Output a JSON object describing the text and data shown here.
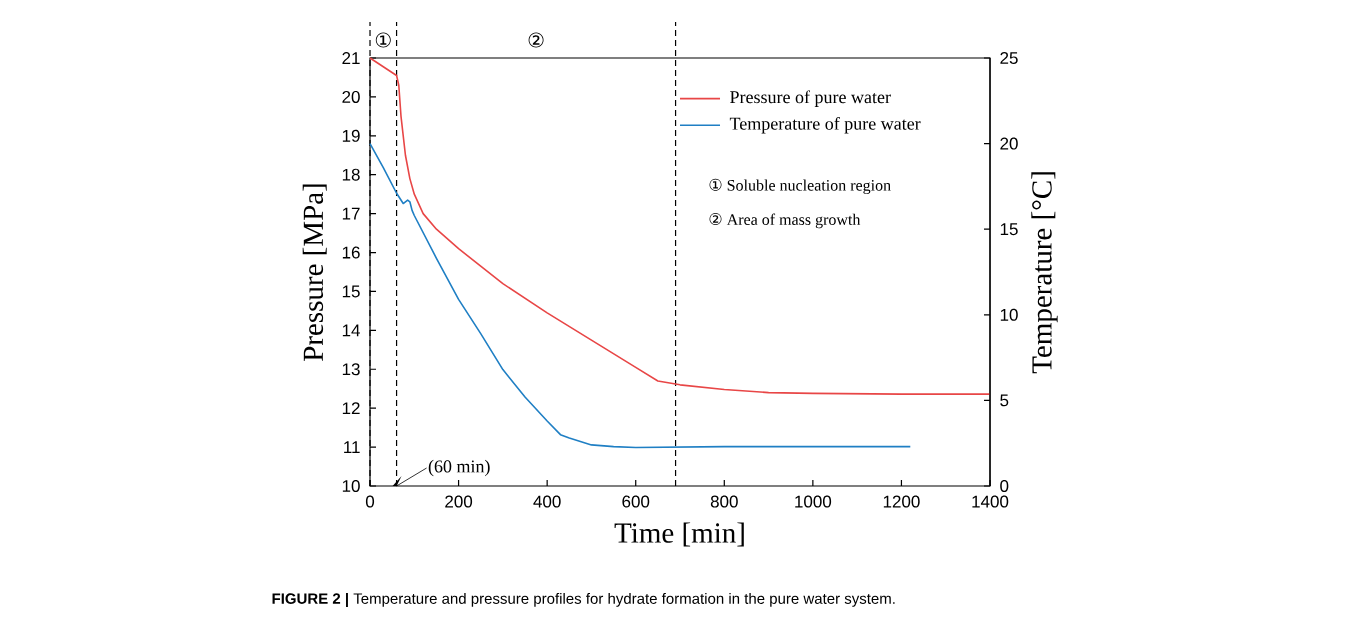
{
  "chart_data": {
    "type": "line",
    "xlabel": "Time [min]",
    "ylabel": "Pressure [MPa]",
    "y2label": "Temperature [°C]",
    "xlim": [
      0,
      1400
    ],
    "xticks": [
      0,
      200,
      400,
      600,
      800,
      1000,
      1200,
      1400
    ],
    "ylim": [
      10,
      21
    ],
    "yticks": [
      10,
      11,
      12,
      13,
      14,
      15,
      16,
      17,
      18,
      19,
      20,
      21
    ],
    "y2lim": [
      0,
      25
    ],
    "y2ticks": [
      0,
      5,
      10,
      15,
      20,
      25
    ],
    "grid": false,
    "legend": "top right",
    "marker": "none",
    "line_style": "solid",
    "series": [
      {
        "name": "Pressure of pure water",
        "color": "#e84646",
        "x": [
          0,
          60,
          65,
          70,
          80,
          90,
          100,
          120,
          150,
          200,
          300,
          400,
          500,
          600,
          650,
          700,
          800,
          900,
          1000,
          1200,
          1400
        ],
        "values": [
          21,
          20.55,
          20.3,
          19.5,
          18.5,
          17.9,
          17.5,
          17.0,
          16.6,
          16.1,
          15.2,
          14.45,
          13.75,
          13.05,
          12.7,
          12.6,
          12.48,
          12.4,
          12.38,
          12.36,
          12.36
        ]
      },
      {
        "name": "Temperature of pure water",
        "color": "#1f7fc4",
        "axis": "y2",
        "x": [
          0,
          30,
          60,
          75,
          85,
          90,
          95,
          100,
          150,
          200,
          250,
          300,
          350,
          400,
          430,
          450,
          500,
          550,
          600,
          800,
          1000,
          1220
        ],
        "values": [
          20,
          18.6,
          17.1,
          16.5,
          16.7,
          16.6,
          16.1,
          15.8,
          13.3,
          10.9,
          8.9,
          6.8,
          5.2,
          3.8,
          3.0,
          2.8,
          2.4,
          2.3,
          2.25,
          2.3,
          2.3,
          2.3
        ]
      }
    ],
    "ref_lines": [
      {
        "axis": "x",
        "value": 0,
        "line_style": "dashed"
      },
      {
        "axis": "x",
        "value": 60,
        "line_style": "dashed"
      },
      {
        "axis": "x",
        "value": 690,
        "line_style": "dashed"
      }
    ],
    "annotations": [
      "①",
      "②",
      {
        "text": "(60 min)",
        "x": 60,
        "y": 10
      },
      "① Soluble nucleation region",
      "② Area of mass growth",
      "**FIGURE 2 |** Temperature and pressure profiles for hydrate formation in the pure water system."
    ]
  }
}
